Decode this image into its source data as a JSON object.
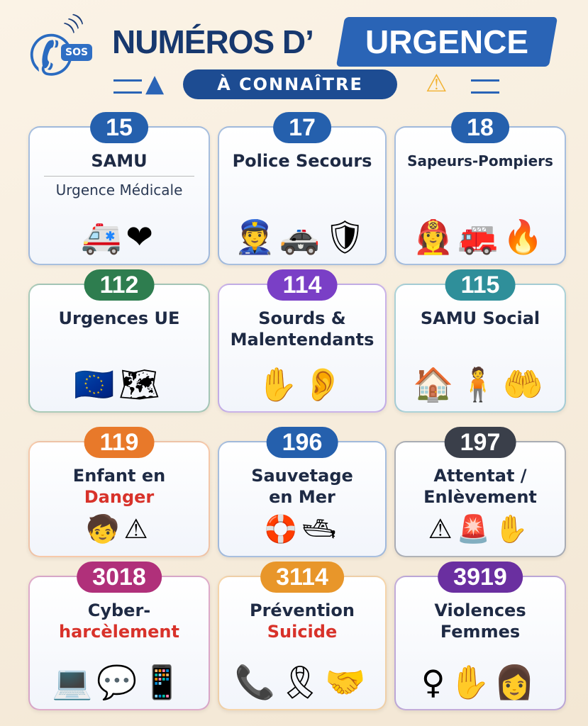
{
  "header": {
    "sos_label": "SOS",
    "title_part1": "NUMÉROS D’",
    "title_part2": "URGENCE",
    "subtitle": "À CONNAÎTRE"
  },
  "colors": {
    "primary": "#1d4c92",
    "accent": "#2a64b6",
    "warning": "#f2b233",
    "danger": "#d8322a"
  },
  "cards": [
    {
      "number": "15",
      "title": "SAMU",
      "subtitle": "Urgence Médicale",
      "color": "#2560ad",
      "icons": [
        "ambulance-icon",
        "heart-pulse-icon"
      ],
      "glyphs": "🚑❤"
    },
    {
      "number": "17",
      "title": "Police Secours",
      "color": "#2560ad",
      "icons": [
        "police-officer-icon",
        "police-car-icon",
        "badge-icon"
      ],
      "glyphs": "👮🚓🛡"
    },
    {
      "number": "18",
      "title": "Sapeurs-Pompiers",
      "color": "#2560ad",
      "icons": [
        "firefighter-icon",
        "fire-truck-icon",
        "fire-icon"
      ],
      "glyphs": "👩‍🚒🚒🔥"
    },
    {
      "number": "112",
      "title": "Urgences UE",
      "color": "#2e7d4f",
      "icons": [
        "eu-flag-icon",
        "europe-map-icon"
      ],
      "glyphs": "🇪🇺🗺"
    },
    {
      "number": "114",
      "title": "Sourds &",
      "title2": "Malentendants",
      "color": "#7a3fc6",
      "icons": [
        "sign-hand-icon",
        "ear-icon"
      ],
      "glyphs": "✋👂"
    },
    {
      "number": "115",
      "title": "SAMU Social",
      "color": "#2f8f9a",
      "icons": [
        "house-icon",
        "person-icon",
        "helping-hand-icon"
      ],
      "glyphs": "🏠🧍🤲"
    },
    {
      "number": "119",
      "title": "Enfant en",
      "title2": "Danger",
      "color": "#e8792a",
      "icons": [
        "child-icon",
        "warning-icon"
      ],
      "glyphs": "🧒⚠"
    },
    {
      "number": "196",
      "title": "Sauvetage",
      "title2": "en Mer",
      "color": "#2560ad",
      "icons": [
        "lifebuoy-icon",
        "boat-icon"
      ],
      "glyphs": "🛟🛥"
    },
    {
      "number": "197",
      "title": "Attentat /",
      "title2": "Enlèvement",
      "color": "#3a3f4a",
      "icons": [
        "warning-icon",
        "alarm-light-icon",
        "handcuffs-icon"
      ],
      "glyphs": "⚠🚨✋"
    },
    {
      "number": "3018",
      "title": "Cyber-",
      "title2": "harcèlement",
      "color": "#b0307a",
      "icons": [
        "laptop-icon",
        "chat-icon",
        "smartphone-icon"
      ],
      "glyphs": "💻💬📱"
    },
    {
      "number": "3114",
      "title": "Prévention",
      "title2": "Suicide",
      "color": "#e8962a",
      "icons": [
        "phone-icon",
        "ribbon-icon",
        "helping-hand-icon"
      ],
      "glyphs": "📞🎗🤝"
    },
    {
      "number": "3919",
      "title": "Violences",
      "title2": "Femmes",
      "color": "#6a2fa0",
      "icons": [
        "female-symbol-icon",
        "stop-hand-icon",
        "woman-icon"
      ],
      "glyphs": "♀✋👩"
    }
  ]
}
